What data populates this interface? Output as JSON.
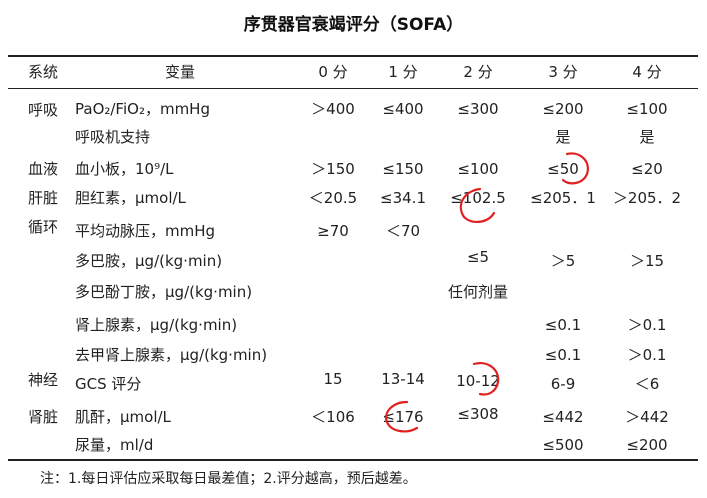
{
  "title": "序贯器官衰竭评分（SOFA）",
  "headers": [
    "系统",
    "变量",
    "0 分",
    "1 分",
    "2 分",
    "3 分",
    "4 分"
  ],
  "systems": {
    "respiratory": "呼吸",
    "blood": "血液",
    "liver": "肝脏",
    "circulation": "循环",
    "neuro": "神经",
    "kidney": "肾脏"
  },
  "rows": [
    {
      "var": "PaO₂/FiO₂，mmHg",
      "s0": "＞400",
      "s1": "≤400",
      "s2": "≤300",
      "s3": "≤200",
      "s4": "≤100"
    },
    {
      "var": "呼吸机支持",
      "s0": "",
      "s1": "",
      "s2": "",
      "s3": "是",
      "s4": "是"
    },
    {
      "var": "血小板，10⁹/L",
      "s0": "＞150",
      "s1": "≤150",
      "s2": "≤100",
      "s3": "≤50",
      "s4": "≤20"
    },
    {
      "var": "胆红素，μmol/L",
      "s0": "＜20.5",
      "s1": "≤34.1",
      "s2": "≤102.5",
      "s3": "≤205．1",
      "s4": "＞205．2"
    },
    {
      "var": "平均动脉压，mmHg",
      "s0": "≥70",
      "s1": "＜70",
      "s2": "",
      "s3": "",
      "s4": ""
    },
    {
      "var": "多巴胺，μg/(kg·min)",
      "s0": "",
      "s1": "",
      "s2": "≤5",
      "s3": "＞5",
      "s4": "＞15"
    },
    {
      "var": "多巴酚丁胺，μg/(kg·min)",
      "s0": "",
      "s1": "",
      "s2": "任何剂量",
      "s3": "",
      "s4": ""
    },
    {
      "var": "肾上腺素，μg/(kg·min)",
      "s0": "",
      "s1": "",
      "s2": "",
      "s3": "≤0.1",
      "s4": "＞0.1"
    },
    {
      "var": "去甲肾上腺素，μg/(kg·min)",
      "s0": "",
      "s1": "",
      "s2": "",
      "s3": "≤0.1",
      "s4": "＞0.1"
    },
    {
      "var": "GCS 评分",
      "s0": "15",
      "s1": "13-14",
      "s2": "10-12",
      "s3": "6-9",
      "s4": "＜6"
    },
    {
      "var": "肌酐，μmol/L",
      "s0": "＜106",
      "s1": "≤176",
      "s2": "≤308",
      "s3": "≤442",
      "s4": "＞442"
    },
    {
      "var": "尿量，ml/d",
      "s0": "",
      "s1": "",
      "s2": "",
      "s3": "≤500",
      "s4": "≤200"
    }
  ],
  "note": "注：1.每日评估应采取每日最差值；2.评分越高，预后越差。",
  "colors": {
    "annotation": "#e02020",
    "rules": "#222222"
  }
}
